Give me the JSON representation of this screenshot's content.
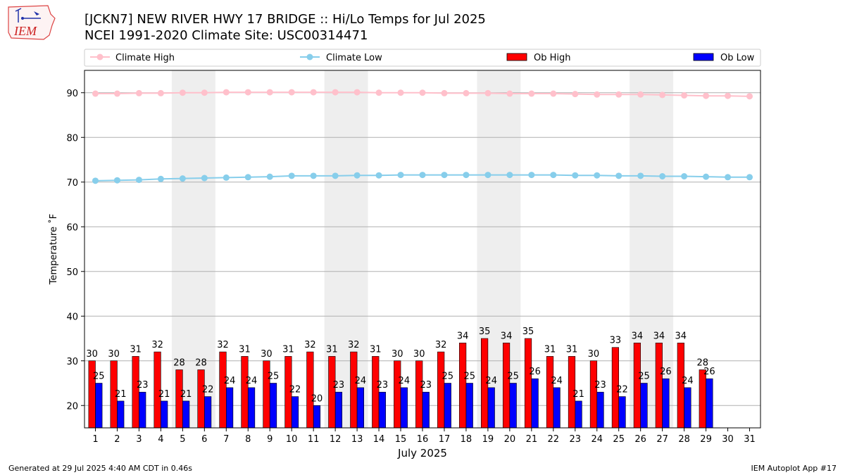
{
  "header": {
    "title_line1": "[JCKN7] NEW RIVER HWY 17 BRIDGE :: Hi/Lo Temps for Jul 2025",
    "title_line2": "NCEI 1991-2020 Climate Site: USC00314471"
  },
  "logo": {
    "text": "IEM"
  },
  "footer": {
    "left": "Generated at 29 Jul 2025 4:40 AM CDT in 0.46s",
    "right": "IEM Autoplot App #17"
  },
  "colors": {
    "climate_high": "#ffc0cb",
    "climate_low": "#87ceeb",
    "ob_high": "#ff0000",
    "ob_low": "#0000ff",
    "weekend_band": "#eeeeee",
    "grid": "#b0b0b0"
  },
  "chart_data": {
    "type": "bar",
    "title": "[JCKN7] NEW RIVER HWY 17 BRIDGE :: Hi/Lo Temps for Jul 2025",
    "subtitle": "NCEI 1991-2020 Climate Site: USC00314471",
    "xlabel": "July 2025",
    "ylabel": "Temperature ˚F",
    "ylim": [
      15,
      95
    ],
    "yticks": [
      20,
      30,
      40,
      50,
      60,
      70,
      80,
      90
    ],
    "grid": "horizontal",
    "legend_position": "top",
    "categories": [
      "1",
      "2",
      "3",
      "4",
      "5",
      "6",
      "7",
      "8",
      "9",
      "10",
      "11",
      "12",
      "13",
      "14",
      "15",
      "16",
      "17",
      "18",
      "19",
      "20",
      "21",
      "22",
      "23",
      "24",
      "25",
      "26",
      "27",
      "28",
      "29",
      "30",
      "31"
    ],
    "shaded_days": [
      [
        5,
        6
      ],
      [
        12,
        13
      ],
      [
        19,
        20
      ],
      [
        26,
        27
      ]
    ],
    "series": [
      {
        "name": "Climate High",
        "kind": "line",
        "values": [
          89.8,
          89.8,
          89.9,
          89.9,
          90.0,
          90.0,
          90.1,
          90.1,
          90.1,
          90.1,
          90.1,
          90.1,
          90.1,
          90.0,
          90.0,
          90.0,
          89.9,
          89.9,
          89.9,
          89.8,
          89.8,
          89.8,
          89.7,
          89.6,
          89.6,
          89.6,
          89.5,
          89.4,
          89.3,
          89.3,
          89.2
        ]
      },
      {
        "name": "Climate Low",
        "kind": "line",
        "values": [
          70.3,
          70.4,
          70.5,
          70.7,
          70.8,
          70.9,
          71.0,
          71.1,
          71.2,
          71.4,
          71.4,
          71.4,
          71.5,
          71.5,
          71.6,
          71.6,
          71.6,
          71.6,
          71.6,
          71.6,
          71.6,
          71.6,
          71.5,
          71.5,
          71.4,
          71.4,
          71.3,
          71.3,
          71.2,
          71.1,
          71.1
        ]
      },
      {
        "name": "Ob High",
        "kind": "bar",
        "values": [
          30,
          30,
          31,
          32,
          28,
          28,
          32,
          31,
          30,
          31,
          32,
          31,
          32,
          31,
          30,
          30,
          32,
          34,
          35,
          34,
          35,
          31,
          31,
          30,
          33,
          34,
          34,
          34,
          28,
          null,
          null
        ]
      },
      {
        "name": "Ob Low",
        "kind": "bar",
        "values": [
          25,
          21,
          23,
          21,
          21,
          22,
          24,
          24,
          25,
          22,
          20,
          23,
          24,
          23,
          24,
          23,
          25,
          25,
          24,
          25,
          26,
          24,
          21,
          23,
          22,
          25,
          26,
          24,
          26,
          null,
          null
        ]
      }
    ]
  }
}
